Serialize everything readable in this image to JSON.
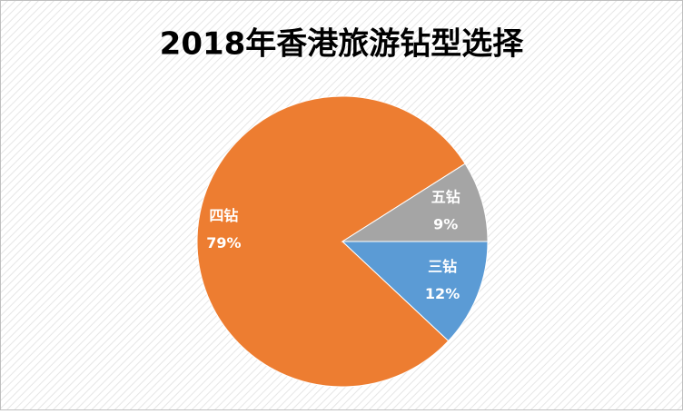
{
  "chart_data": {
    "type": "pie",
    "title": "2018年香港旅游钻型选择",
    "categories": [
      "三钻",
      "四钻",
      "五钻"
    ],
    "values": [
      12,
      79,
      9
    ],
    "value_labels": [
      "12%",
      "79%",
      "9%"
    ],
    "colors": [
      "#5b9bd5",
      "#ed7d31",
      "#a5a5a5"
    ]
  }
}
